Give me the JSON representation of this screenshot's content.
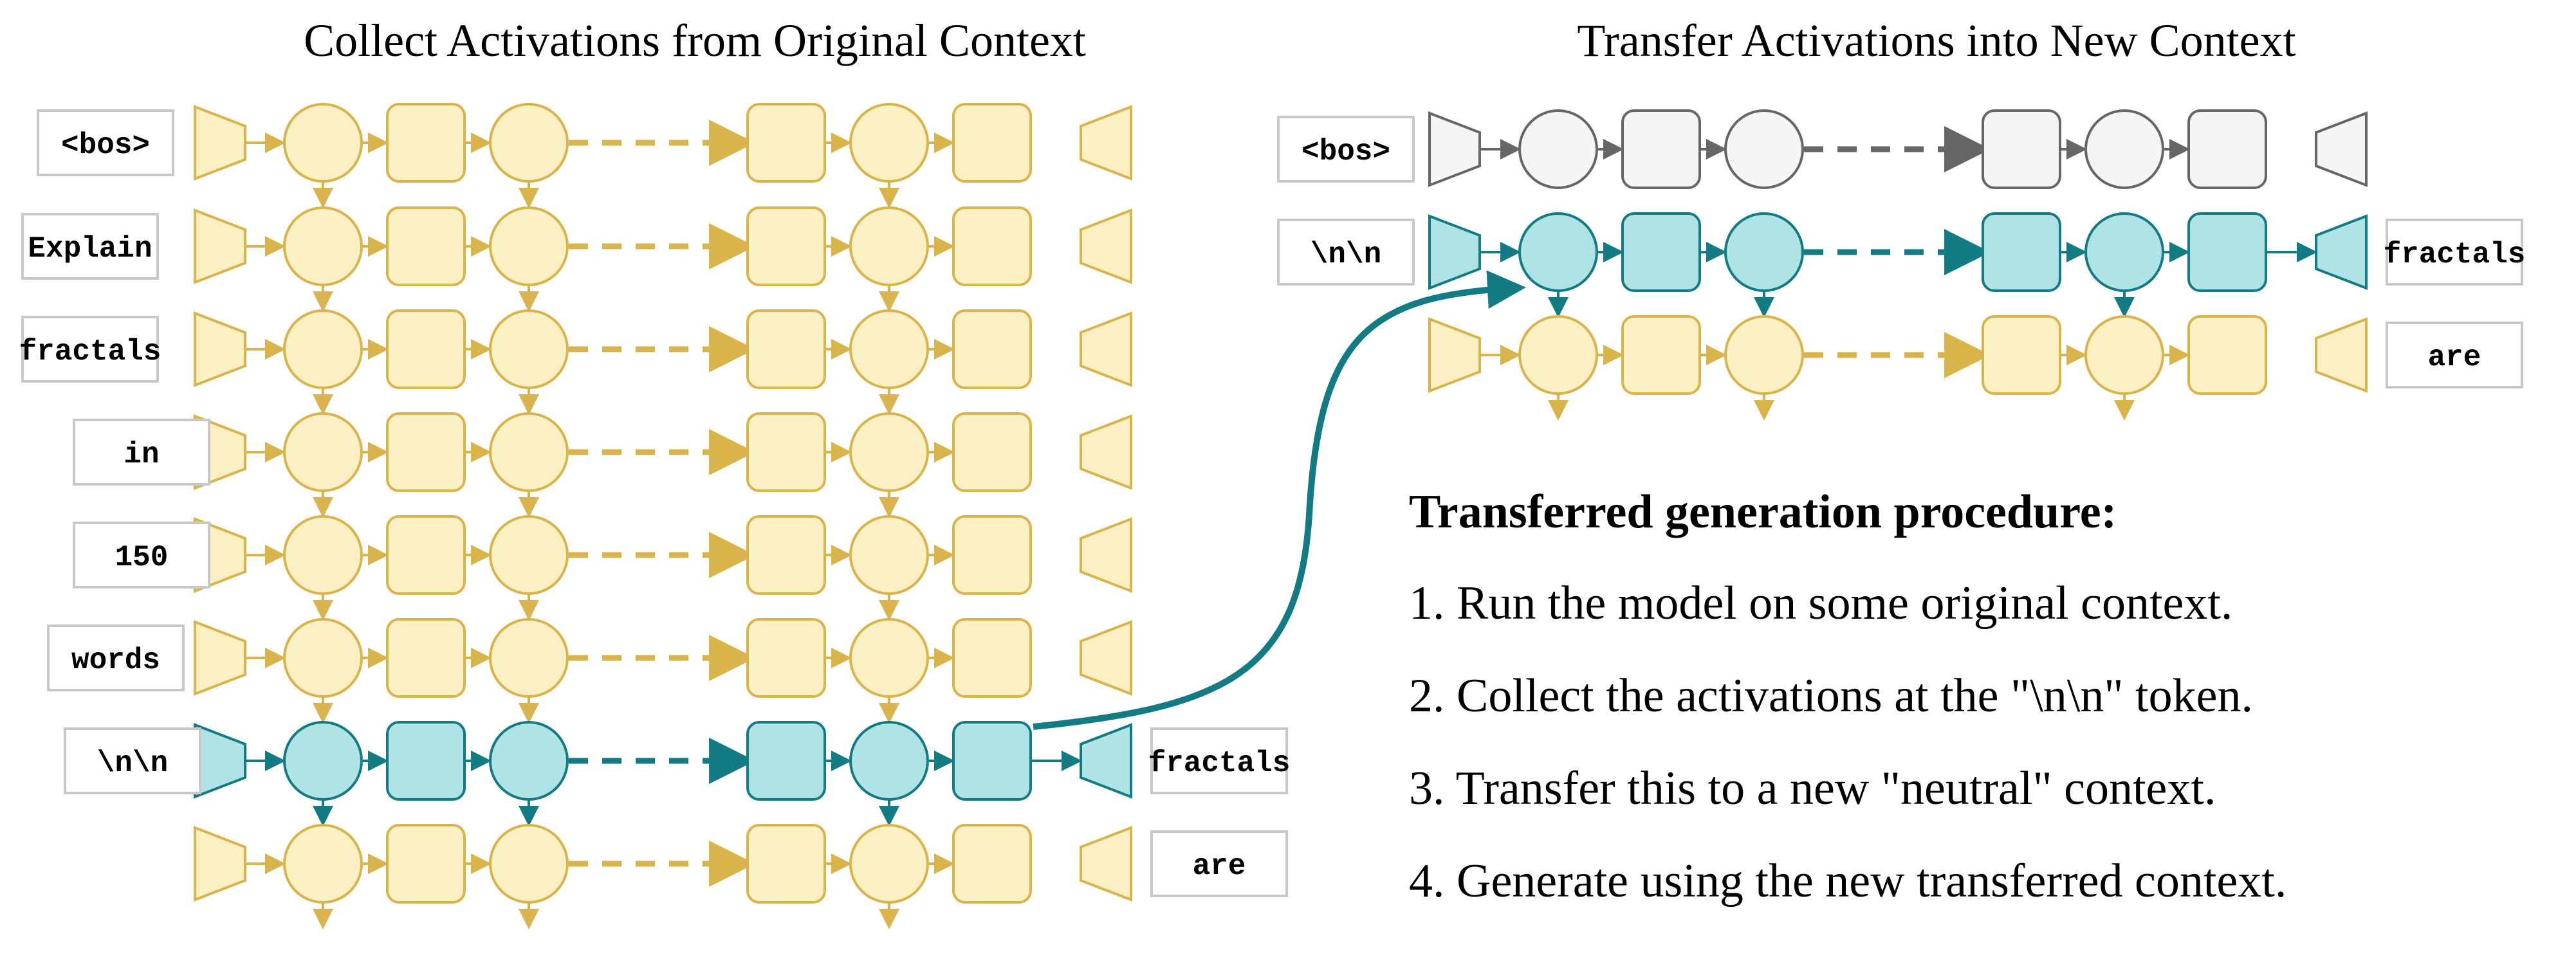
{
  "titles": {
    "left": "Collect Activations from Original Context",
    "right": "Transfer Activations into New Context"
  },
  "left_panel": {
    "input_tokens": [
      "<bos>",
      "Explain",
      "fractals",
      "in",
      "150",
      "words",
      "\\n\\n",
      ""
    ],
    "output_tokens": [
      "",
      "",
      "",
      "",
      "",
      "",
      "fractals",
      "are"
    ],
    "highlighted_row": 6
  },
  "right_panel": {
    "input_tokens": [
      "<bos>",
      "\\n\\n",
      ""
    ],
    "output_tokens": [
      "",
      "fractals",
      "are"
    ]
  },
  "procedure": {
    "heading": "Transferred generation procedure:",
    "steps": [
      "1. Run the model on some original context.",
      "2. Collect the activations at the \"\\n\\n\" token.",
      "3. Transfer this to a new \"neutral\" context.",
      "4. Generate using the new transferred context."
    ]
  },
  "colors": {
    "yellow_fill": "#fbefc4",
    "yellow_stroke": "#d9b44a",
    "teal_fill": "#b0e3e6",
    "teal_stroke": "#137b83",
    "gray_fill": "#f5f5f5",
    "gray_stroke": "#666666",
    "transfer_arrow": "#137b83"
  }
}
